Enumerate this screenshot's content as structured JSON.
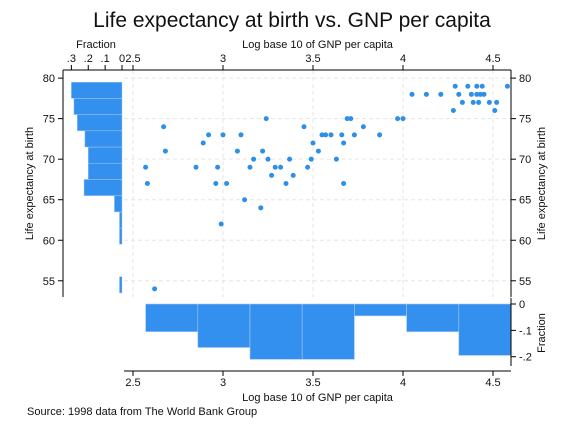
{
  "colors": {
    "marker": "#2e8fe6",
    "bar": "#3390ee",
    "bar_edge": "#a9c9ee",
    "axis": "#000000",
    "grid": "#e6e6e6"
  },
  "chart_data": {
    "type": "scatter",
    "title": "Life expectancy at birth vs. GNP per capita",
    "note": "Source: 1998 data from The World Bank Group",
    "xlabel": "Log base 10 of GNP per capita",
    "ylabel": "Life expectancy at birth",
    "xlim": [
      2.45,
      4.6
    ],
    "ylim": [
      53,
      81
    ],
    "x_ticks": [
      2.5,
      3,
      3.5,
      4,
      4.5
    ],
    "x_tick_labels": [
      "2.5",
      "3",
      "3.5",
      "4",
      "4.5"
    ],
    "y_ticks": [
      55,
      60,
      65,
      70,
      75,
      80
    ],
    "y_tick_labels": [
      "55",
      "60",
      "65",
      "70",
      "75",
      "80"
    ],
    "grid": true,
    "points": [
      [
        2.57,
        69
      ],
      [
        2.58,
        67
      ],
      [
        2.62,
        54
      ],
      [
        2.67,
        74
      ],
      [
        2.68,
        71
      ],
      [
        2.85,
        69
      ],
      [
        2.89,
        72
      ],
      [
        2.92,
        73
      ],
      [
        2.96,
        67
      ],
      [
        2.97,
        69
      ],
      [
        2.99,
        62
      ],
      [
        3.0,
        73
      ],
      [
        3.02,
        67
      ],
      [
        3.08,
        71
      ],
      [
        3.1,
        73
      ],
      [
        3.12,
        65
      ],
      [
        3.15,
        69
      ],
      [
        3.17,
        70
      ],
      [
        3.21,
        64
      ],
      [
        3.22,
        71
      ],
      [
        3.24,
        75
      ],
      [
        3.25,
        70
      ],
      [
        3.27,
        68
      ],
      [
        3.29,
        69
      ],
      [
        3.32,
        69
      ],
      [
        3.35,
        67
      ],
      [
        3.37,
        70
      ],
      [
        3.39,
        68
      ],
      [
        3.45,
        74
      ],
      [
        3.47,
        69
      ],
      [
        3.49,
        70
      ],
      [
        3.5,
        72
      ],
      [
        3.53,
        71
      ],
      [
        3.55,
        73
      ],
      [
        3.57,
        73
      ],
      [
        3.6,
        73
      ],
      [
        3.63,
        70
      ],
      [
        3.66,
        73
      ],
      [
        3.67,
        72
      ],
      [
        3.67,
        67
      ],
      [
        3.69,
        75
      ],
      [
        3.71,
        75
      ],
      [
        3.73,
        73
      ],
      [
        3.78,
        74
      ],
      [
        3.87,
        73
      ],
      [
        3.97,
        75
      ],
      [
        4.0,
        75
      ],
      [
        4.05,
        78
      ],
      [
        4.13,
        78
      ],
      [
        4.21,
        78
      ],
      [
        4.28,
        76
      ],
      [
        4.29,
        79
      ],
      [
        4.31,
        78
      ],
      [
        4.33,
        77
      ],
      [
        4.36,
        79
      ],
      [
        4.38,
        78
      ],
      [
        4.39,
        77
      ],
      [
        4.41,
        79
      ],
      [
        4.41,
        78
      ],
      [
        4.42,
        77
      ],
      [
        4.43,
        78
      ],
      [
        4.44,
        79
      ],
      [
        4.45,
        78
      ],
      [
        4.48,
        77
      ],
      [
        4.51,
        76
      ],
      [
        4.52,
        77
      ],
      [
        4.58,
        79
      ]
    ],
    "y_histogram": {
      "label": "Fraction",
      "tick_labels": [
        ".3",
        ".2",
        ".1",
        "0"
      ],
      "ticks": [
        0.3,
        0.2,
        0.1,
        0
      ],
      "xlim": [
        0.32,
        0
      ],
      "bins": [
        {
          "from": 53.5,
          "to": 55.5,
          "fraction": 0.015
        },
        {
          "from": 55.5,
          "to": 57.5,
          "fraction": 0
        },
        {
          "from": 57.5,
          "to": 59.5,
          "fraction": 0
        },
        {
          "from": 59.5,
          "to": 61.5,
          "fraction": 0.015
        },
        {
          "from": 61.5,
          "to": 63.5,
          "fraction": 0.015
        },
        {
          "from": 63.5,
          "to": 65.5,
          "fraction": 0.045
        },
        {
          "from": 65.5,
          "to": 67.5,
          "fraction": 0.225
        },
        {
          "from": 67.5,
          "to": 69.5,
          "fraction": 0.2
        },
        {
          "from": 69.5,
          "to": 71.5,
          "fraction": 0.2
        },
        {
          "from": 71.5,
          "to": 73.5,
          "fraction": 0.22
        },
        {
          "from": 73.5,
          "to": 75.5,
          "fraction": 0.265
        },
        {
          "from": 75.5,
          "to": 77.5,
          "fraction": 0.285
        },
        {
          "from": 77.5,
          "to": 79.5,
          "fraction": 0.3
        }
      ]
    },
    "x_histogram": {
      "label": "Fraction",
      "tick_labels": [
        "0",
        "-.1",
        "-.2"
      ],
      "ticks": [
        0,
        -0.1,
        -0.2
      ],
      "ylim": [
        -0.22,
        0
      ],
      "bins": [
        {
          "from": 2.57,
          "to": 2.86,
          "fraction": 0.105
        },
        {
          "from": 2.86,
          "to": 3.15,
          "fraction": 0.165
        },
        {
          "from": 3.15,
          "to": 3.44,
          "fraction": 0.21
        },
        {
          "from": 3.44,
          "to": 3.73,
          "fraction": 0.21
        },
        {
          "from": 3.73,
          "to": 4.02,
          "fraction": 0.045
        },
        {
          "from": 4.02,
          "to": 4.31,
          "fraction": 0.105
        },
        {
          "from": 4.31,
          "to": 4.6,
          "fraction": 0.195
        }
      ]
    }
  }
}
